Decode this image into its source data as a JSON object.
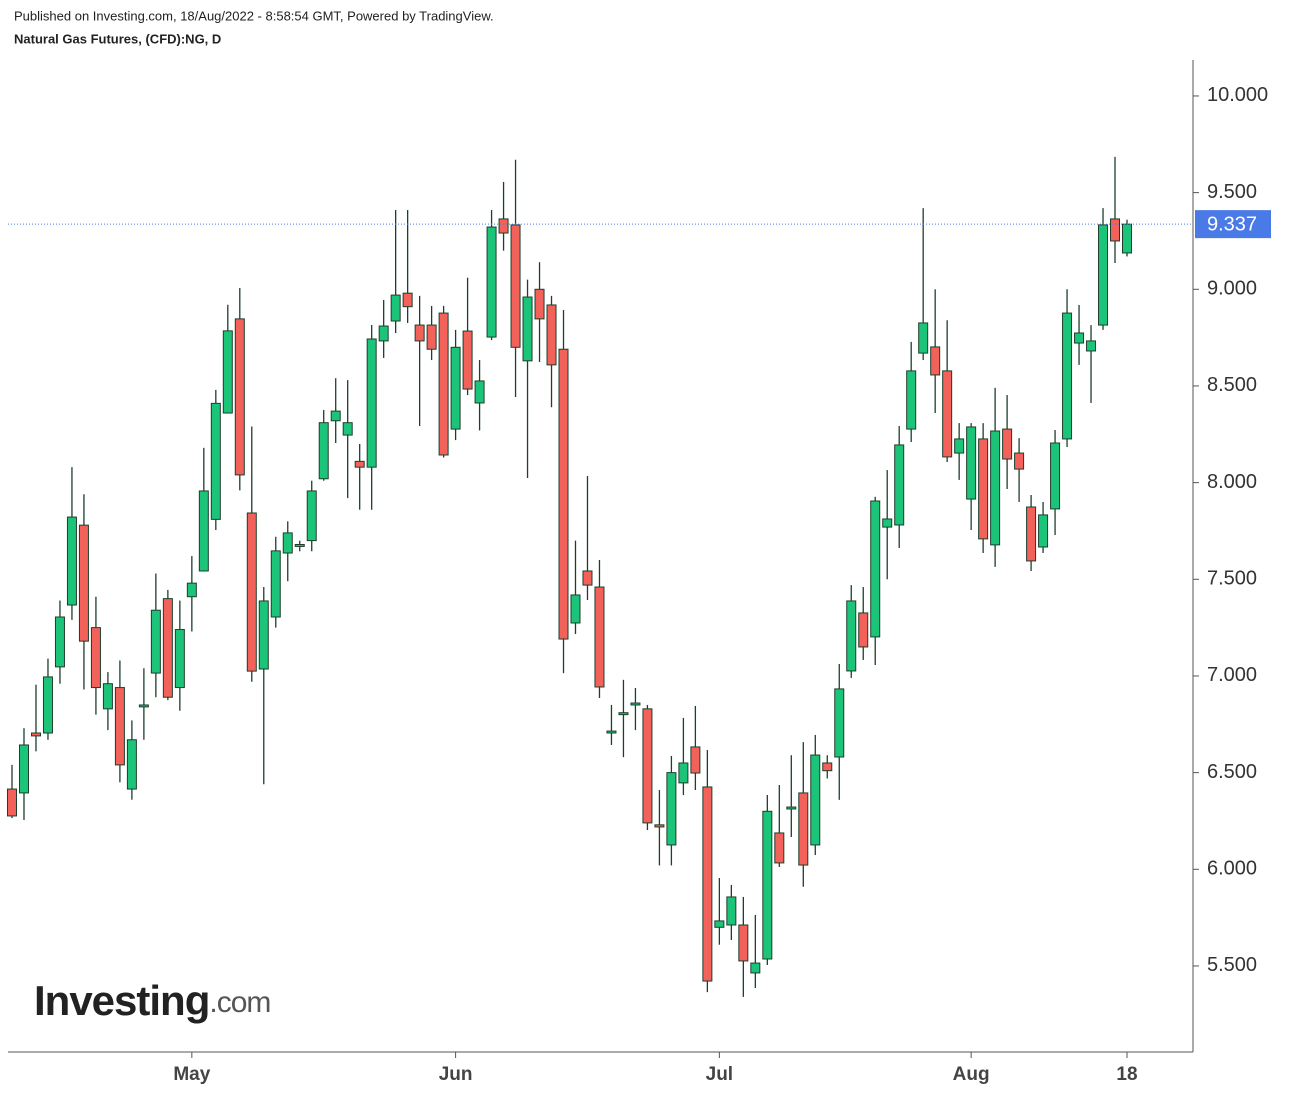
{
  "header": {
    "published": "Published on Investing.com, 18/Aug/2022 - 8:58:54 GMT, Powered by TradingView."
  },
  "logo": {
    "main": "Investing",
    "suffix": ".com"
  },
  "chart_data": {
    "type": "candlestick",
    "title": "Natural Gas Futures, (CFD):NG, D",
    "categories": [
      null,
      null,
      null,
      null,
      null,
      null,
      null,
      null,
      null,
      null,
      null,
      null,
      null,
      null,
      null,
      "May",
      null,
      null,
      null,
      null,
      null,
      null,
      null,
      null,
      null,
      null,
      null,
      null,
      null,
      null,
      null,
      null,
      null,
      null,
      null,
      null,
      null,
      "Jun",
      null,
      null,
      null,
      null,
      null,
      null,
      null,
      null,
      null,
      null,
      null,
      null,
      null,
      null,
      null,
      null,
      null,
      null,
      null,
      null,
      null,
      "Jul",
      null,
      null,
      null,
      null,
      null,
      null,
      null,
      null,
      null,
      null,
      null,
      null,
      null,
      null,
      null,
      null,
      null,
      null,
      null,
      null,
      "Aug",
      null,
      null,
      null,
      null,
      null,
      null,
      null,
      null,
      null,
      null,
      null,
      null,
      "18"
    ],
    "open": [
      6.415,
      6.395,
      6.705,
      6.705,
      7.047,
      7.367,
      7.78,
      7.25,
      6.83,
      6.94,
      6.415,
      6.84,
      7.015,
      7.4,
      6.94,
      7.41,
      7.543,
      7.81,
      8.36,
      8.847,
      7.843,
      7.036,
      7.305,
      7.636,
      7.68,
      7.7,
      8.02,
      8.32,
      8.246,
      8.11,
      8.08,
      8.733,
      8.836,
      8.98,
      8.815,
      8.815,
      8.877,
      8.277,
      8.784,
      8.412,
      8.753,
      9.364,
      9.333,
      8.63,
      9.0,
      8.919,
      8.69,
      7.274,
      7.543,
      7.46,
      6.705,
      6.8,
      6.85,
      6.83,
      6.23,
      6.126,
      6.447,
      6.633,
      6.426,
      5.7,
      5.712,
      5.712,
      5.464,
      5.536,
      6.188,
      6.312,
      6.395,
      6.126,
      6.55,
      6.581,
      7.026,
      7.326,
      7.202,
      7.77,
      7.781,
      8.277,
      8.67,
      8.702,
      8.578,
      8.153,
      7.915,
      8.226,
      7.678,
      8.277,
      8.153,
      7.874,
      7.667,
      7.864,
      8.226,
      8.722,
      8.681,
      8.815,
      9.364,
      9.188
    ],
    "high": [
      6.54,
      6.73,
      6.955,
      7.09,
      7.39,
      8.08,
      7.94,
      7.41,
      7.02,
      7.08,
      6.77,
      7.04,
      7.53,
      7.445,
      7.39,
      7.62,
      8.18,
      8.48,
      8.92,
      9.007,
      8.29,
      7.46,
      7.72,
      7.8,
      7.7,
      8.01,
      8.376,
      8.54,
      8.53,
      8.2,
      8.815,
      8.945,
      9.41,
      9.41,
      8.966,
      8.914,
      8.914,
      8.79,
      9.06,
      8.634,
      9.41,
      9.555,
      9.67,
      9.05,
      9.14,
      8.966,
      8.893,
      7.7,
      8.034,
      7.6,
      6.85,
      6.98,
      6.938,
      6.85,
      6.41,
      6.586,
      6.783,
      6.845,
      6.617,
      5.955,
      5.919,
      5.857,
      5.764,
      6.384,
      6.436,
      6.59,
      6.658,
      6.695,
      6.59,
      7.062,
      7.47,
      7.46,
      7.926,
      8.065,
      8.293,
      8.728,
      9.42,
      9.0,
      8.84,
      8.308,
      8.308,
      8.308,
      8.49,
      8.453,
      8.23,
      7.936,
      7.9,
      8.272,
      9.0,
      8.919,
      8.815,
      9.42,
      9.685,
      9.36
    ],
    "low": [
      6.265,
      6.255,
      6.61,
      6.67,
      6.96,
      7.29,
      6.93,
      6.8,
      6.72,
      6.45,
      6.36,
      6.67,
      6.89,
      6.875,
      6.82,
      7.23,
      7.54,
      7.755,
      8.36,
      7.96,
      6.97,
      6.44,
      7.25,
      7.49,
      7.645,
      7.645,
      8.01,
      8.205,
      7.92,
      7.86,
      7.86,
      8.645,
      8.774,
      8.826,
      8.293,
      8.634,
      8.13,
      8.22,
      8.453,
      8.27,
      8.738,
      9.2,
      8.443,
      8.024,
      8.624,
      8.39,
      7.015,
      7.217,
      7.393,
      6.886,
      6.643,
      6.58,
      6.72,
      6.203,
      6.02,
      6.02,
      6.384,
      6.41,
      5.365,
      5.61,
      5.634,
      5.34,
      5.386,
      5.505,
      6.012,
      6.167,
      5.91,
      6.074,
      6.47,
      6.359,
      6.99,
      7.083,
      7.057,
      7.5,
      7.662,
      8.21,
      8.634,
      8.36,
      8.107,
      8.014,
      7.755,
      7.636,
      7.564,
      7.967,
      7.9,
      7.543,
      7.636,
      7.729,
      8.184,
      8.609,
      8.412,
      8.79,
      9.136,
      9.17
    ],
    "close": [
      6.276,
      6.643,
      6.69,
      6.995,
      7.305,
      7.822,
      7.18,
      6.94,
      6.96,
      6.54,
      6.67,
      6.85,
      7.34,
      6.89,
      7.24,
      7.48,
      7.957,
      8.41,
      8.785,
      8.04,
      7.025,
      7.388,
      7.647,
      7.74,
      7.67,
      7.957,
      8.31,
      8.37,
      8.31,
      8.08,
      8.743,
      8.81,
      8.97,
      8.91,
      8.733,
      8.69,
      8.143,
      8.7,
      8.484,
      8.526,
      9.322,
      9.291,
      8.7,
      8.96,
      8.847,
      8.609,
      7.191,
      7.419,
      7.47,
      6.943,
      6.715,
      6.81,
      6.86,
      6.24,
      6.219,
      6.5,
      6.55,
      6.498,
      5.422,
      5.733,
      5.857,
      5.526,
      5.515,
      6.3,
      6.033,
      6.322,
      6.022,
      6.591,
      6.51,
      6.933,
      7.388,
      7.15,
      7.905,
      7.812,
      8.195,
      8.578,
      8.826,
      8.557,
      8.133,
      8.226,
      8.288,
      7.709,
      8.267,
      8.122,
      8.07,
      7.595,
      7.833,
      8.205,
      8.877,
      8.774,
      8.733,
      9.333,
      9.25,
      9.337
    ],
    "up_color": "#1cc47a",
    "down_color": "#f2615a",
    "last_price": 9.337,
    "last_price_color": "#4a7ae8",
    "ylim": [
      5.055,
      10.186
    ],
    "yticks": [
      {
        "value": 5.5,
        "label": "5.500"
      },
      {
        "value": 6,
        "label": "6.000"
      },
      {
        "value": 6.5,
        "label": "6.500"
      },
      {
        "value": 7,
        "label": "7.000"
      },
      {
        "value": 7.5,
        "label": "7.500"
      },
      {
        "value": 8,
        "label": "8.000"
      },
      {
        "value": 8.5,
        "label": "8.500"
      },
      {
        "value": 9,
        "label": "9.000"
      },
      {
        "value": 9.5,
        "label": "9.500"
      },
      {
        "value": 10,
        "label": "10.000"
      }
    ]
  }
}
